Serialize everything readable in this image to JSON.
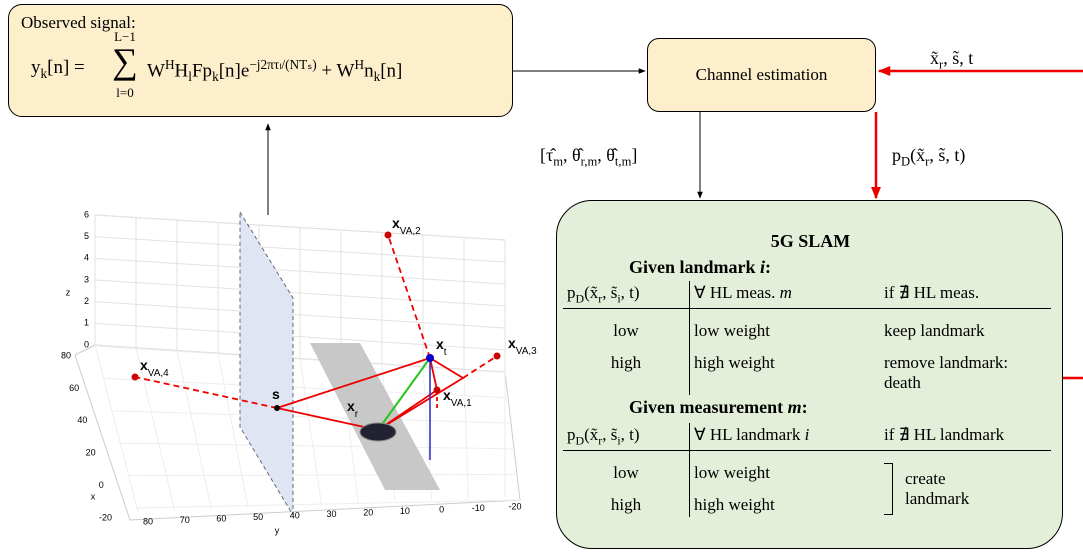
{
  "formula_box": {
    "label": "Observed signal:",
    "lhs": [
      {
        "t": "y"
      },
      {
        "sub": "k"
      },
      {
        "t": "[n] = "
      }
    ],
    "sum": {
      "symbol": "∑",
      "upper": "L−1",
      "lower": "l=0"
    },
    "rhs": [
      {
        "t": "W"
      },
      {
        "sup": "H"
      },
      {
        "t": "H"
      },
      {
        "sub": "l"
      },
      {
        "t": "Fp"
      },
      {
        "sub": "k"
      },
      {
        "t": "[n]e"
      },
      {
        "sup": "−j2πτₗ/(NTₛ)"
      },
      {
        "t": " + W"
      },
      {
        "sup": "H"
      },
      {
        "t": "n"
      },
      {
        "sub": "k"
      },
      {
        "t": "[n]"
      }
    ]
  },
  "channel_estimation": {
    "label": "Channel estimation"
  },
  "input_label": [
    {
      "t": "x̃"
    },
    {
      "sub": "r"
    },
    {
      "t": ", s̃, t"
    }
  ],
  "detection_label": [
    {
      "t": "p"
    },
    {
      "sub": "D"
    },
    {
      "t": "(x̃"
    },
    {
      "sub": "r"
    },
    {
      "t": ", s̃, t)"
    }
  ],
  "estimates_label": [
    {
      "t": "[τ̂"
    },
    {
      "sub": "m"
    },
    {
      "t": ", θ̂"
    },
    {
      "sub": "r,m"
    },
    {
      "t": ", θ̂"
    },
    {
      "sub": "t,m"
    },
    {
      "t": "]"
    }
  ],
  "slam": {
    "title": "5G SLAM",
    "sections": [
      {
        "heading": [
          {
            "t": "Given landmark "
          },
          {
            "it": "i"
          },
          {
            "t": ":"
          }
        ],
        "header": [
          [
            {
              "t": "p"
            },
            {
              "sub": "D"
            },
            {
              "t": "(x̃"
            },
            {
              "sub": "r"
            },
            {
              "t": ", s̃"
            },
            {
              "sub": "i"
            },
            {
              "t": ", t)"
            }
          ],
          [
            {
              "t": "∀ HL meas. "
            },
            {
              "it": "m"
            }
          ],
          "if ∄ HL meas."
        ],
        "rows": [
          [
            "low",
            "low weight",
            "keep landmark"
          ],
          [
            "high",
            "high weight",
            "remove landmark: death"
          ]
        ]
      },
      {
        "heading": [
          {
            "t": "Given measurement "
          },
          {
            "it": "m"
          },
          {
            "t": ":"
          }
        ],
        "header": [
          [
            {
              "t": "p"
            },
            {
              "sub": "D"
            },
            {
              "t": "(x̃"
            },
            {
              "sub": "r"
            },
            {
              "t": ", s̃"
            },
            {
              "sub": "i"
            },
            {
              "t": ", t)"
            }
          ],
          [
            {
              "t": "∀ HL landmark "
            },
            {
              "it": "i"
            }
          ],
          "if ∄ HL landmark"
        ],
        "rows": [
          [
            "low",
            "low weight"
          ],
          [
            "high",
            "high weight"
          ]
        ],
        "shared_outcome": "create landmark"
      }
    ]
  },
  "plot": {
    "zlabel": "z",
    "xlabel": "x",
    "ylabel": "y",
    "zticks": [
      0,
      1,
      2,
      3,
      4,
      5,
      6
    ],
    "xticks": [
      80,
      60,
      40,
      20,
      0,
      -20
    ],
    "yticks": [
      80,
      70,
      60,
      50,
      40,
      30,
      20,
      10,
      0,
      -10,
      -20
    ],
    "points": {
      "va2": [
        {
          "t": "x"
        },
        {
          "sub": "VA,2"
        }
      ],
      "xt": [
        {
          "t": "x"
        },
        {
          "sub": "t"
        }
      ],
      "va3": [
        {
          "t": "x"
        },
        {
          "sub": "VA,3"
        }
      ],
      "va4": [
        {
          "t": "x"
        },
        {
          "sub": "VA,4"
        }
      ],
      "s": [
        {
          "t": "s"
        }
      ],
      "xr": [
        {
          "t": "x"
        },
        {
          "sub": "r"
        }
      ],
      "va1": [
        {
          "t": "x"
        },
        {
          "sub": "VA,1"
        }
      ]
    }
  }
}
